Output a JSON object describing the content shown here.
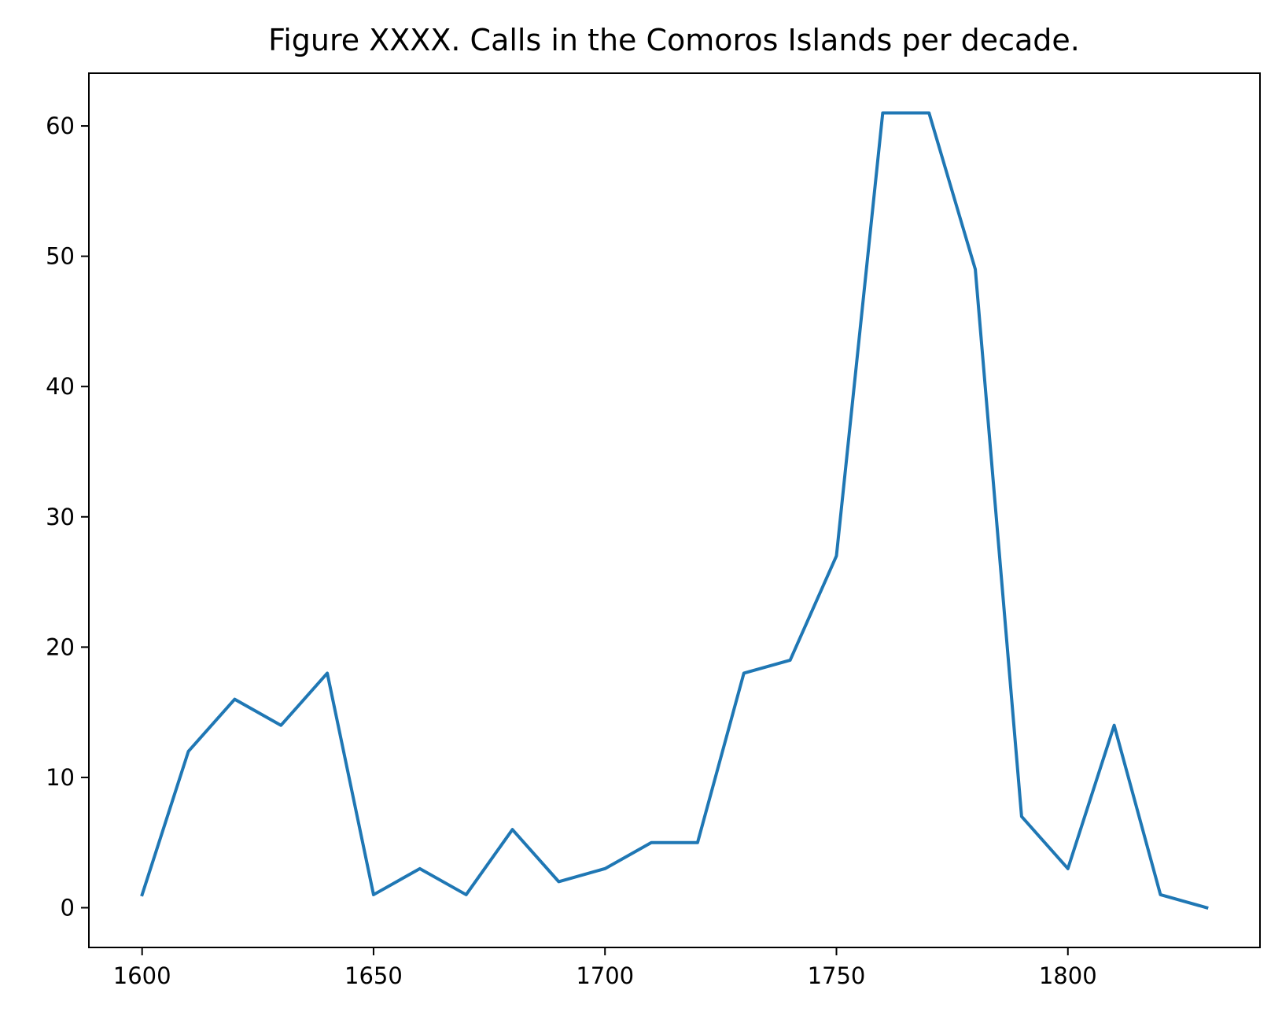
{
  "chart_data": {
    "type": "line",
    "title": "Figure XXXX. Calls in the Comoros Islands per decade.",
    "xlabel": "",
    "ylabel": "",
    "x": [
      1600,
      1610,
      1620,
      1630,
      1640,
      1650,
      1660,
      1670,
      1680,
      1690,
      1700,
      1710,
      1720,
      1730,
      1740,
      1750,
      1760,
      1770,
      1780,
      1790,
      1800,
      1810,
      1820,
      1830
    ],
    "series": [
      {
        "color": "#1f77b4",
        "values": [
          1,
          12,
          16,
          14,
          18,
          1,
          3,
          1,
          6,
          2,
          3,
          5,
          5,
          18,
          19,
          27,
          61,
          61,
          49,
          7,
          3,
          14,
          1,
          0
        ]
      }
    ],
    "xlim": [
      1588.5,
      1841.5
    ],
    "ylim": [
      -3.05,
      64.05
    ],
    "xticks": [
      "1600",
      "1650",
      "1700",
      "1750",
      "1800"
    ],
    "yticks": [
      "0",
      "10",
      "20",
      "30",
      "40",
      "50",
      "60"
    ],
    "grid": false,
    "legend": "none"
  }
}
